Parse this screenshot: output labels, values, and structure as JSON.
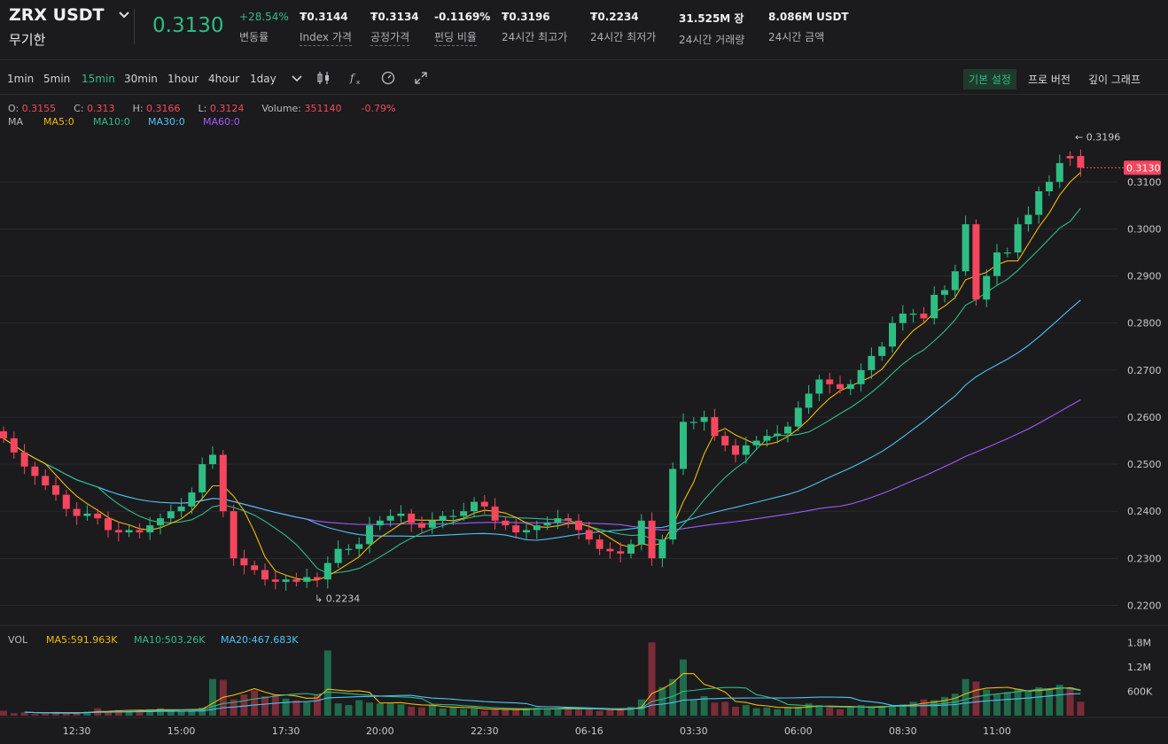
{
  "header": {
    "symbol": "ZRX USDT",
    "contract_type": "무기한",
    "last_price": "0.3130",
    "stats": [
      {
        "value": "+28.54%",
        "label": "변동률",
        "green": true,
        "dotted": false
      },
      {
        "value": "₮0.3144",
        "label": "Index 가격",
        "green": false,
        "dotted": true
      },
      {
        "value": "₮0.3134",
        "label": "공정가격",
        "green": false,
        "dotted": true
      },
      {
        "value": "-0.1169%",
        "label": "펀딩 비율",
        "green": false,
        "dotted": true
      },
      {
        "value": "₮0.3196",
        "label": "24시간 최고가",
        "green": false,
        "dotted": false
      },
      {
        "value": "₮0.2234",
        "label": "24시간 최저가",
        "green": false,
        "dotted": false
      },
      {
        "value": "31.525M 장",
        "label": "24시간 거래량",
        "green": false,
        "dotted": false
      },
      {
        "value": "8.086M USDT",
        "label": "24시간 금액",
        "green": false,
        "dotted": false
      }
    ]
  },
  "toolbar": {
    "timeframes": [
      "1min",
      "5min",
      "15min",
      "30min",
      "1hour",
      "4hour",
      "1day"
    ],
    "active_timeframe": "15min",
    "views": [
      "기본 설정",
      "프로 버전",
      "깊이 그래프"
    ],
    "active_view": "기본 설정"
  },
  "ohlc": {
    "open_label": "O:",
    "open": "0.3155",
    "close_label": "C:",
    "close": "0.313",
    "high_label": "H:",
    "high": "0.3166",
    "low_label": "L:",
    "low": "0.3124",
    "volume_label": "Volume:",
    "volume": "351140",
    "change": "-0.79%"
  },
  "ma_legend": {
    "label": "MA",
    "items": [
      {
        "text": "MA5:0",
        "color": "#f0b90b"
      },
      {
        "text": "MA10:0",
        "color": "#2ebd85"
      },
      {
        "text": "MA30:0",
        "color": "#4fc3f7"
      },
      {
        "text": "MA60:0",
        "color": "#a259ff"
      }
    ]
  },
  "vol_legend": {
    "label": "VOL",
    "items": [
      {
        "text": "MA5:591.963K",
        "color": "#f0b90b"
      },
      {
        "text": "MA10:503.26K",
        "color": "#2ebd85"
      },
      {
        "text": "MA20:467.683K",
        "color": "#4fc3f7"
      }
    ]
  },
  "chart_data": {
    "type": "candlestick",
    "interval": "15min",
    "y_ticks": [
      "0.3100",
      "0.3000",
      "0.2900",
      "0.2800",
      "0.2700",
      "0.2600",
      "0.2500",
      "0.2400",
      "0.2300",
      "0.2200"
    ],
    "y_range": [
      0.2182,
      0.3208
    ],
    "volume_ticks": [
      "1.8M",
      "1.2M",
      "600K"
    ],
    "x_ticks": [
      "12:30",
      "15:00",
      "17:30",
      "20:00",
      "22:30",
      "06-16",
      "03:30",
      "06:00",
      "08:30",
      "11:00"
    ],
    "current_price_label": "0.3130",
    "high_marker": "0.3196",
    "low_marker": "0.2234",
    "colors": {
      "up": "#2ebd85",
      "down": "#f6465d",
      "ma5": "#f0b90b",
      "ma10": "#2ebd85",
      "ma30": "#4fc3f7",
      "ma60": "#a259ff"
    },
    "closes": [
      0.2555,
      0.2525,
      0.2495,
      0.2475,
      0.2455,
      0.2435,
      0.2405,
      0.239,
      0.2395,
      0.2385,
      0.236,
      0.2355,
      0.236,
      0.2355,
      0.237,
      0.2385,
      0.24,
      0.241,
      0.244,
      0.25,
      0.252,
      0.24,
      0.23,
      0.2285,
      0.2275,
      0.2255,
      0.225,
      0.2255,
      0.225,
      0.226,
      0.2255,
      0.229,
      0.232,
      0.232,
      0.233,
      0.237,
      0.238,
      0.239,
      0.2395,
      0.2375,
      0.2365,
      0.238,
      0.239,
      0.239,
      0.24,
      0.242,
      0.241,
      0.238,
      0.237,
      0.2355,
      0.236,
      0.237,
      0.2375,
      0.2385,
      0.238,
      0.236,
      0.234,
      0.232,
      0.2315,
      0.231,
      0.233,
      0.238,
      0.23,
      0.234,
      0.249,
      0.259,
      0.259,
      0.26,
      0.256,
      0.254,
      0.252,
      0.254,
      0.255,
      0.256,
      0.2565,
      0.258,
      0.262,
      0.265,
      0.268,
      0.267,
      0.266,
      0.267,
      0.27,
      0.273,
      0.275,
      0.28,
      0.282,
      0.282,
      0.281,
      0.286,
      0.287,
      0.291,
      0.301,
      0.285,
      0.29,
      0.295,
      0.295,
      0.301,
      0.303,
      0.308,
      0.31,
      0.314,
      0.315,
      0.313
    ],
    "opens": [
      0.257,
      0.2555,
      0.2525,
      0.2495,
      0.2475,
      0.2455,
      0.2435,
      0.2405,
      0.239,
      0.2395,
      0.2385,
      0.236,
      0.2355,
      0.236,
      0.2355,
      0.237,
      0.2385,
      0.24,
      0.241,
      0.244,
      0.25,
      0.252,
      0.24,
      0.23,
      0.2285,
      0.2275,
      0.2255,
      0.225,
      0.2255,
      0.225,
      0.226,
      0.2255,
      0.229,
      0.232,
      0.232,
      0.233,
      0.237,
      0.238,
      0.239,
      0.2395,
      0.2375,
      0.2365,
      0.238,
      0.239,
      0.239,
      0.24,
      0.242,
      0.241,
      0.238,
      0.237,
      0.2355,
      0.236,
      0.237,
      0.2375,
      0.2385,
      0.238,
      0.236,
      0.234,
      0.232,
      0.2315,
      0.231,
      0.233,
      0.238,
      0.23,
      0.234,
      0.249,
      0.259,
      0.259,
      0.26,
      0.256,
      0.254,
      0.252,
      0.254,
      0.255,
      0.256,
      0.2565,
      0.258,
      0.262,
      0.265,
      0.268,
      0.267,
      0.266,
      0.267,
      0.27,
      0.273,
      0.275,
      0.28,
      0.282,
      0.282,
      0.281,
      0.286,
      0.287,
      0.291,
      0.301,
      0.285,
      0.29,
      0.295,
      0.295,
      0.301,
      0.303,
      0.308,
      0.31,
      0.3155,
      0.3155
    ],
    "volumes_k": [
      120,
      60,
      80,
      40,
      50,
      90,
      60,
      70,
      100,
      180,
      110,
      140,
      120,
      130,
      160,
      180,
      140,
      120,
      150,
      200,
      900,
      880,
      400,
      520,
      620,
      480,
      520,
      420,
      380,
      330,
      520,
      1600,
      300,
      260,
      380,
      320,
      300,
      320,
      280,
      220,
      200,
      260,
      180,
      200,
      160,
      180,
      120,
      150,
      160,
      140,
      180,
      200,
      160,
      180,
      200,
      150,
      160,
      120,
      140,
      160,
      220,
      400,
      1800,
      700,
      900,
      1380,
      380,
      480,
      320,
      340,
      220,
      260,
      180,
      200,
      160,
      200,
      220,
      300,
      260,
      200,
      160,
      200,
      260,
      200,
      240,
      260,
      280,
      340,
      400,
      380,
      460,
      540,
      900,
      840,
      640,
      520,
      580,
      660,
      620,
      700,
      640,
      760,
      700,
      340
    ]
  }
}
